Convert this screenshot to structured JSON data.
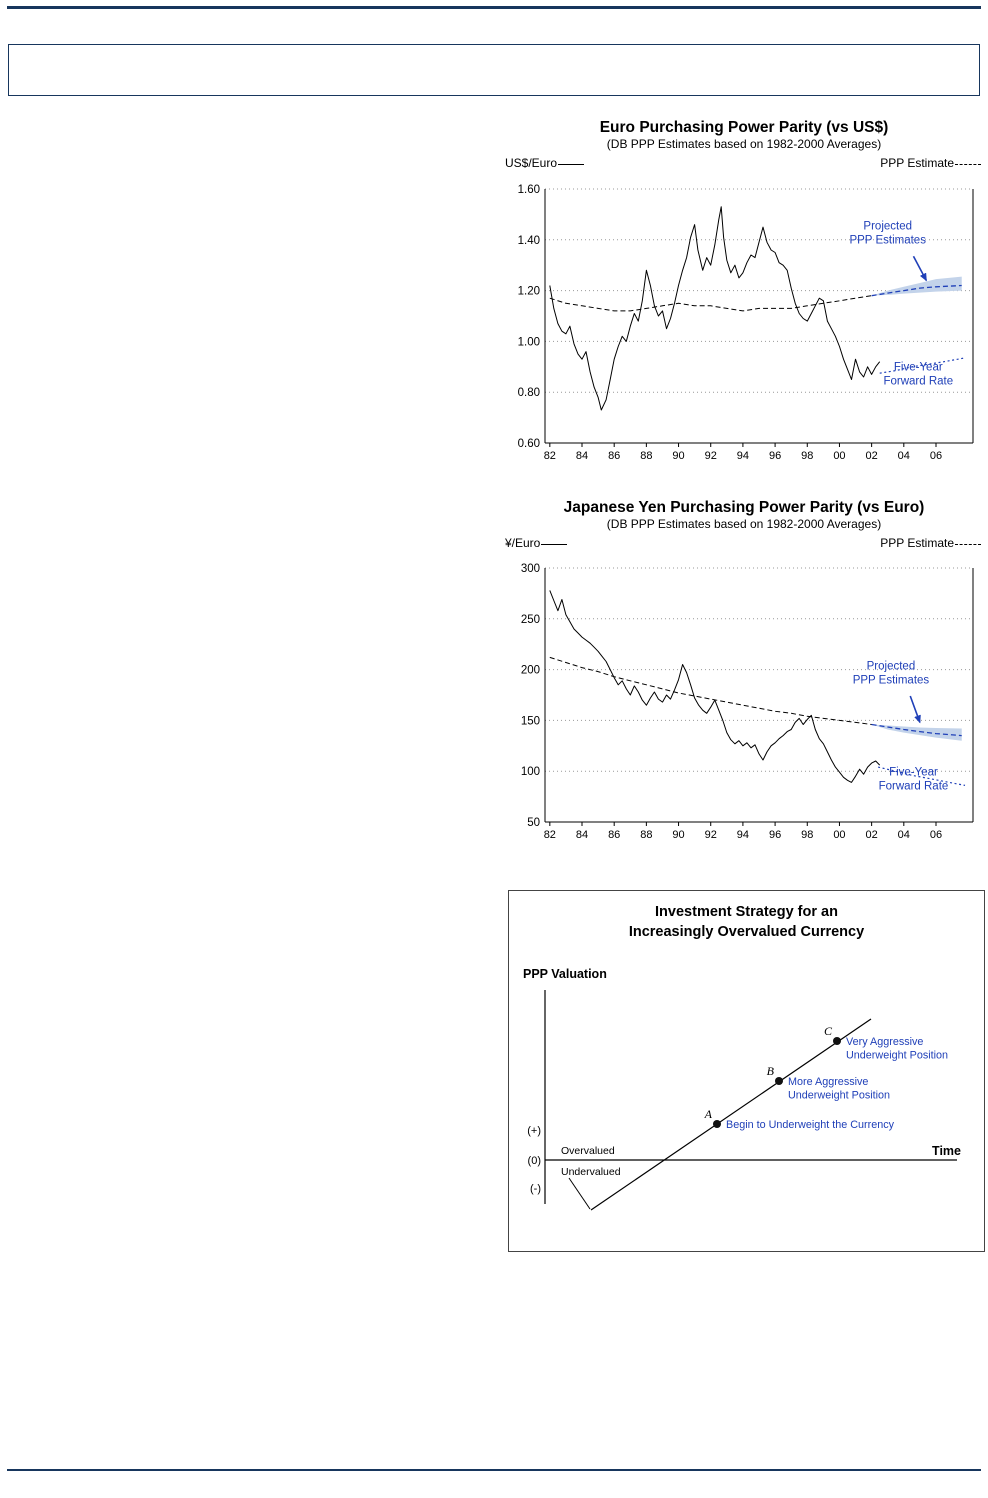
{
  "page": {
    "rule_color": "#17365d"
  },
  "charts": [
    {
      "title": "Euro Purchasing Power Parity (vs US$)",
      "subtitle": "(DB PPP Estimates based on 1982-2000 Averages)",
      "y_axis_label": "US$/Euro",
      "right_legend": "PPP Estimate"
    },
    {
      "title": "Japanese Yen Purchasing Power Parity (vs Euro)",
      "subtitle": "(DB PPP Estimates based on 1982-2000 Averages)",
      "y_axis_label": "¥/Euro",
      "right_legend": "PPP Estimate"
    }
  ],
  "diagram": {
    "title_lines": [
      "Investment Strategy for an",
      "Increasingly Overvalued Currency"
    ],
    "y_axis_label": "PPP Valuation",
    "x_axis_label": "Time",
    "axis_ticks": [
      "(+)",
      "(0)",
      "(-)"
    ],
    "region_labels": [
      "Overvalued",
      "Undervalued"
    ],
    "accent_color": "#2040b8",
    "points": [
      {
        "letter": "A",
        "label_lines": [
          "Begin to Underweight the Currency"
        ]
      },
      {
        "letter": "B",
        "label_lines": [
          "More Aggressive",
          "Underweight Position"
        ]
      },
      {
        "letter": "C",
        "label_lines": [
          "Very Aggressive",
          "Underweight Position"
        ]
      }
    ]
  },
  "chart_data": [
    {
      "type": "line",
      "title": "Euro Purchasing Power Parity (vs US$)",
      "subtitle": "(DB PPP Estimates based on 1982-2000 Averages)",
      "ylabel": "US$/Euro",
      "xlabel": "",
      "legend_right": "PPP Estimate",
      "ylim": [
        0.6,
        1.6
      ],
      "yticks": [
        0.6,
        0.8,
        1.0,
        1.2,
        1.4,
        1.6
      ],
      "ytick_labels": [
        "0.60",
        "0.80",
        "1.00",
        "1.20",
        "1.40",
        "1.60"
      ],
      "xlim": [
        1981.7,
        2008.3
      ],
      "xticks": [
        1982,
        1984,
        1986,
        1988,
        1990,
        1992,
        1994,
        1996,
        1998,
        2000,
        2002,
        2004,
        2006
      ],
      "xtick_labels": [
        "82",
        "84",
        "86",
        "88",
        "90",
        "92",
        "94",
        "96",
        "98",
        "00",
        "02",
        "04",
        "06"
      ],
      "grid": "horizontal-dotted",
      "accent": "#2040b8",
      "band_color": "#c3d3ea",
      "series": [
        {
          "name": "US$/Euro spot rate",
          "style": "solid",
          "color": "#000000",
          "width": 1,
          "x": [
            1982.0,
            1982.25,
            1982.5,
            1982.75,
            1983.0,
            1983.25,
            1983.5,
            1983.75,
            1984.0,
            1984.25,
            1984.5,
            1984.75,
            1985.0,
            1985.2,
            1985.5,
            1985.75,
            1986.0,
            1986.25,
            1986.5,
            1986.75,
            1987.0,
            1987.25,
            1987.5,
            1987.75,
            1988.0,
            1988.25,
            1988.5,
            1988.75,
            1989.0,
            1989.25,
            1989.5,
            1989.75,
            1990.0,
            1990.25,
            1990.5,
            1990.75,
            1991.0,
            1991.2,
            1991.5,
            1991.75,
            1992.0,
            1992.25,
            1992.5,
            1992.65,
            1992.8,
            1993.0,
            1993.25,
            1993.5,
            1993.75,
            1994.0,
            1994.25,
            1994.5,
            1994.75,
            1995.0,
            1995.25,
            1995.5,
            1995.75,
            1996.0,
            1996.25,
            1996.5,
            1996.75,
            1997.0,
            1997.25,
            1997.5,
            1997.75,
            1998.0,
            1998.25,
            1998.5,
            1998.75,
            1999.0,
            1999.25,
            1999.5,
            1999.75,
            2000.0,
            2000.25,
            2000.5,
            2000.75,
            2001.0,
            2001.25,
            2001.5,
            2001.75,
            2002.0,
            2002.25,
            2002.5
          ],
          "values": [
            1.22,
            1.13,
            1.07,
            1.04,
            1.03,
            1.06,
            0.99,
            0.95,
            0.93,
            0.96,
            0.88,
            0.82,
            0.78,
            0.73,
            0.77,
            0.85,
            0.93,
            0.98,
            1.02,
            1.0,
            1.06,
            1.11,
            1.08,
            1.16,
            1.28,
            1.22,
            1.14,
            1.1,
            1.12,
            1.05,
            1.09,
            1.15,
            1.22,
            1.28,
            1.33,
            1.41,
            1.46,
            1.36,
            1.28,
            1.33,
            1.3,
            1.38,
            1.48,
            1.53,
            1.41,
            1.32,
            1.27,
            1.3,
            1.25,
            1.27,
            1.31,
            1.34,
            1.33,
            1.39,
            1.45,
            1.39,
            1.36,
            1.35,
            1.31,
            1.3,
            1.28,
            1.21,
            1.15,
            1.11,
            1.09,
            1.08,
            1.11,
            1.14,
            1.17,
            1.16,
            1.08,
            1.05,
            1.02,
            0.98,
            0.93,
            0.89,
            0.85,
            0.93,
            0.88,
            0.86,
            0.9,
            0.87,
            0.9,
            0.92
          ]
        },
        {
          "name": "PPP Estimate",
          "style": "dashed",
          "color": "#000000",
          "width": 1,
          "x": [
            1982,
            1983,
            1984,
            1985,
            1986,
            1987,
            1988,
            1989,
            1990,
            1991,
            1992,
            1993,
            1994,
            1995,
            1996,
            1997,
            1998,
            1999,
            2000,
            2001,
            2002
          ],
          "values": [
            1.17,
            1.15,
            1.14,
            1.13,
            1.12,
            1.12,
            1.13,
            1.14,
            1.15,
            1.14,
            1.14,
            1.13,
            1.12,
            1.13,
            1.13,
            1.13,
            1.14,
            1.15,
            1.16,
            1.17,
            1.18
          ]
        },
        {
          "name": "Projected PPP Estimates",
          "style": "dashed",
          "color": "#2040b8",
          "width": 1.3,
          "x": [
            2002,
            2003,
            2004,
            2005,
            2006,
            2007.6
          ],
          "values": [
            1.18,
            1.19,
            1.2,
            1.21,
            1.215,
            1.22
          ],
          "band_upper": [
            1.18,
            1.2,
            1.215,
            1.23,
            1.245,
            1.255
          ],
          "band_lower": [
            1.18,
            1.183,
            1.188,
            1.192,
            1.196,
            1.2
          ]
        },
        {
          "name": "Five-Year Forward Rate",
          "style": "dotted",
          "color": "#2040b8",
          "width": 1.2,
          "x": [
            2002.5,
            2003.5,
            2004.5,
            2005.5,
            2006.5,
            2007.8
          ],
          "values": [
            0.875,
            0.885,
            0.9,
            0.91,
            0.92,
            0.935
          ]
        }
      ],
      "annotations": [
        {
          "lines": [
            "Projected",
            "PPP Estimates"
          ],
          "x": 2003.0,
          "y": 1.44,
          "arrow": {
            "x1": 2004.6,
            "y1": 1.335,
            "x2": 2005.4,
            "y2": 1.24
          }
        },
        {
          "lines": [
            "Five-Year",
            "Forward Rate"
          ],
          "x": 2004.9,
          "y": 0.885
        }
      ]
    },
    {
      "type": "line",
      "title": "Japanese Yen Purchasing Power Parity (vs Euro)",
      "subtitle": "(DB PPP Estimates based on 1982-2000 Averages)",
      "ylabel": "¥/Euro",
      "xlabel": "",
      "legend_right": "PPP Estimate",
      "ylim": [
        50,
        300
      ],
      "yticks": [
        50,
        100,
        150,
        200,
        250,
        300
      ],
      "ytick_labels": [
        "50",
        "100",
        "150",
        "200",
        "250",
        "300"
      ],
      "xlim": [
        1981.7,
        2008.3
      ],
      "xticks": [
        1982,
        1984,
        1986,
        1988,
        1990,
        1992,
        1994,
        1996,
        1998,
        2000,
        2002,
        2004,
        2006
      ],
      "xtick_labels": [
        "82",
        "84",
        "86",
        "88",
        "90",
        "92",
        "94",
        "96",
        "98",
        "00",
        "02",
        "04",
        "06"
      ],
      "grid": "horizontal-dotted",
      "accent": "#2040b8",
      "band_color": "#c3d3ea",
      "series": [
        {
          "name": "¥/Euro spot rate",
          "style": "solid",
          "color": "#000000",
          "width": 1,
          "x": [
            1982.0,
            1982.25,
            1982.5,
            1982.75,
            1983.0,
            1983.25,
            1983.5,
            1983.75,
            1984.0,
            1984.25,
            1984.5,
            1984.75,
            1985.0,
            1985.25,
            1985.5,
            1985.75,
            1986.0,
            1986.25,
            1986.5,
            1986.75,
            1987.0,
            1987.25,
            1987.5,
            1987.75,
            1988.0,
            1988.25,
            1988.5,
            1988.75,
            1989.0,
            1989.25,
            1989.5,
            1989.75,
            1990.0,
            1990.25,
            1990.5,
            1990.75,
            1991.0,
            1991.25,
            1991.5,
            1991.75,
            1992.0,
            1992.25,
            1992.5,
            1992.75,
            1993.0,
            1993.25,
            1993.5,
            1993.75,
            1994.0,
            1994.25,
            1994.5,
            1994.75,
            1995.0,
            1995.25,
            1995.5,
            1995.75,
            1996.0,
            1996.25,
            1996.5,
            1996.75,
            1997.0,
            1997.25,
            1997.5,
            1997.75,
            1998.0,
            1998.25,
            1998.5,
            1998.75,
            1999.0,
            1999.25,
            1999.5,
            1999.75,
            2000.0,
            2000.25,
            2000.5,
            2000.75,
            2001.0,
            2001.25,
            2001.5,
            2001.75,
            2002.0,
            2002.25,
            2002.5
          ],
          "values": [
            278,
            268,
            258,
            269,
            254,
            247,
            240,
            236,
            232,
            229,
            226,
            222,
            218,
            213,
            208,
            200,
            192,
            185,
            189,
            181,
            175,
            184,
            178,
            170,
            165,
            172,
            178,
            171,
            168,
            175,
            171,
            180,
            190,
            205,
            197,
            185,
            172,
            165,
            160,
            157,
            163,
            170,
            160,
            150,
            138,
            131,
            127,
            130,
            125,
            128,
            123,
            126,
            117,
            111,
            119,
            125,
            128,
            132,
            135,
            139,
            141,
            148,
            152,
            146,
            151,
            155,
            141,
            132,
            127,
            119,
            111,
            104,
            99,
            94,
            91,
            89,
            95,
            102,
            97,
            104,
            108,
            110,
            106
          ]
        },
        {
          "name": "PPP Estimate",
          "style": "dashed",
          "color": "#000000",
          "width": 1,
          "x": [
            1982,
            1983,
            1984,
            1985,
            1986,
            1987,
            1988,
            1989,
            1990,
            1991,
            1992,
            1993,
            1994,
            1995,
            1996,
            1997,
            1998,
            1999,
            2000,
            2001,
            2002
          ],
          "values": [
            212,
            207,
            202,
            198,
            193,
            189,
            185,
            181,
            177,
            174,
            171,
            168,
            165,
            162,
            159,
            157,
            154,
            152,
            150,
            148,
            146
          ]
        },
        {
          "name": "Projected PPP Estimates",
          "style": "dashed",
          "color": "#2040b8",
          "width": 1.3,
          "x": [
            2002,
            2003,
            2004,
            2005,
            2006,
            2007.6
          ],
          "values": [
            146,
            143.5,
            141,
            139,
            137,
            135
          ],
          "band_upper": [
            146,
            145,
            144,
            143,
            142.5,
            142
          ],
          "band_lower": [
            146,
            141,
            138,
            135.5,
            133,
            130
          ]
        },
        {
          "name": "Five-Year Forward Rate",
          "style": "dotted",
          "color": "#2040b8",
          "width": 1.2,
          "x": [
            2002.4,
            2003.5,
            2004.5,
            2005.5,
            2006.5,
            2007.8
          ],
          "values": [
            104,
            100,
            96,
            93,
            90,
            86
          ]
        }
      ],
      "annotations": [
        {
          "lines": [
            "Projected",
            "PPP Estimates"
          ],
          "x": 2003.2,
          "y": 200,
          "arrow": {
            "x1": 2004.4,
            "y1": 174,
            "x2": 2005.0,
            "y2": 148
          }
        },
        {
          "lines": [
            "Five-Year",
            "Forward Rate"
          ],
          "x": 2004.6,
          "y": 96
        }
      ]
    }
  ]
}
